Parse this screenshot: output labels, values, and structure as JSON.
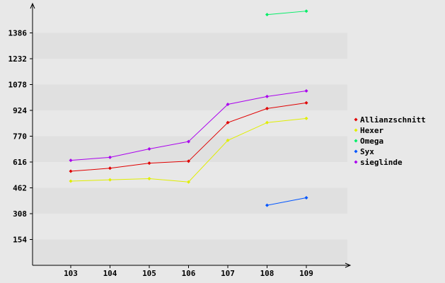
{
  "chart_data": {
    "type": "line",
    "categories": [
      "103",
      "104",
      "105",
      "106",
      "107",
      "108",
      "109"
    ],
    "y_ticks": [
      154,
      308,
      462,
      616,
      770,
      924,
      1078,
      1232,
      1386
    ],
    "ylim": [
      0,
      1540
    ],
    "series": [
      {
        "name": "Allianzschnitt",
        "color": "#e00000",
        "values": [
          561,
          579,
          609,
          621,
          851,
          935,
          969
        ]
      },
      {
        "name": "Hexer",
        "color": "#e0ee00",
        "values": [
          502,
          510,
          517,
          497,
          745,
          851,
          876
        ]
      },
      {
        "name": "Omega",
        "color": "#00ee66",
        "values": [
          null,
          null,
          null,
          null,
          null,
          1495,
          1516
        ]
      },
      {
        "name": "Syx",
        "color": "#0055ff",
        "values": [
          null,
          null,
          null,
          null,
          null,
          358,
          403
        ]
      },
      {
        "name": "sieglinde",
        "color": "#aa00ee",
        "values": [
          626,
          644,
          694,
          738,
          960,
          1007,
          1040
        ]
      }
    ],
    "legend_position": "right",
    "grid": "horizontal bands"
  }
}
